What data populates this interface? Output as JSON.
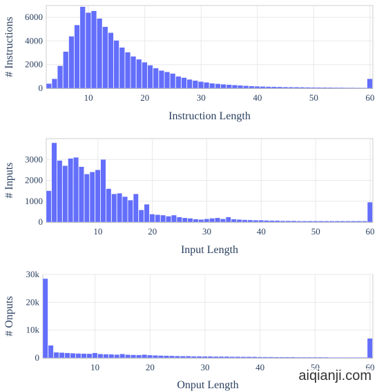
{
  "colors": {
    "bar": "#636efa",
    "grid": "#e8e8e8",
    "text": "#2a3f5f",
    "zero_line": "#444444"
  },
  "watermark": "aiqianji.com",
  "chart_data": [
    {
      "type": "bar",
      "xlabel": "Instruction Length",
      "ylabel": "# Instructions",
      "xlim": [
        3,
        60
      ],
      "ylim": [
        0,
        7000
      ],
      "x_ticks": [
        10,
        20,
        30,
        40,
        50,
        60
      ],
      "y_ticks": [
        0,
        2000,
        4000,
        6000
      ],
      "y_tick_labels": [
        "0",
        "2000",
        "4000",
        "6000"
      ],
      "x": [
        3,
        4,
        5,
        6,
        7,
        8,
        9,
        10,
        11,
        12,
        13,
        14,
        15,
        16,
        17,
        18,
        19,
        20,
        21,
        22,
        23,
        24,
        25,
        26,
        27,
        28,
        29,
        30,
        31,
        32,
        33,
        34,
        35,
        36,
        37,
        38,
        39,
        40,
        41,
        42,
        43,
        44,
        45,
        46,
        47,
        48,
        49,
        50,
        51,
        52,
        53,
        54,
        55,
        56,
        57,
        58,
        59,
        60
      ],
      "values": [
        400,
        800,
        1900,
        3100,
        4400,
        5350,
        6900,
        6400,
        6550,
        5900,
        5200,
        4700,
        4050,
        3450,
        3050,
        2700,
        2450,
        2200,
        1950,
        1700,
        1500,
        1380,
        1250,
        1000,
        900,
        750,
        650,
        560,
        500,
        420,
        380,
        340,
        300,
        270,
        240,
        210,
        190,
        170,
        150,
        140,
        130,
        120,
        110,
        100,
        95,
        90,
        85,
        80,
        75,
        70,
        65,
        60,
        60,
        55,
        55,
        50,
        50,
        800
      ]
    },
    {
      "type": "bar",
      "xlabel": "Input Length",
      "ylabel": "# Inputs",
      "xlim": [
        1,
        60
      ],
      "ylim": [
        0,
        4000
      ],
      "x_ticks": [
        10,
        20,
        30,
        40,
        50,
        60
      ],
      "y_ticks": [
        0,
        1000,
        2000,
        3000
      ],
      "y_tick_labels": [
        "0",
        "1000",
        "2000",
        "3000"
      ],
      "x": [
        1,
        2,
        3,
        4,
        5,
        6,
        7,
        8,
        9,
        10,
        11,
        12,
        13,
        14,
        15,
        16,
        17,
        18,
        19,
        20,
        21,
        22,
        23,
        24,
        25,
        26,
        27,
        28,
        29,
        30,
        31,
        32,
        33,
        34,
        35,
        36,
        37,
        38,
        39,
        40,
        41,
        42,
        43,
        44,
        45,
        46,
        47,
        48,
        49,
        50,
        51,
        52,
        53,
        54,
        55,
        56,
        57,
        58,
        59,
        60
      ],
      "values": [
        1500,
        3800,
        2950,
        2700,
        3050,
        3100,
        2650,
        2300,
        2400,
        2500,
        3000,
        1600,
        1350,
        1380,
        1220,
        1050,
        1350,
        580,
        850,
        380,
        350,
        330,
        280,
        330,
        240,
        200,
        180,
        140,
        120,
        150,
        180,
        200,
        150,
        240,
        140,
        120,
        110,
        100,
        90,
        90,
        80,
        70,
        70,
        60,
        60,
        60,
        50,
        50,
        50,
        50,
        50,
        50,
        50,
        50,
        50,
        50,
        50,
        50,
        50,
        950
      ]
    },
    {
      "type": "bar",
      "xlabel": "Onput Length",
      "ylabel": "# Onputs",
      "xlim": [
        1,
        60
      ],
      "ylim": [
        0,
        30000
      ],
      "x_ticks": [
        10,
        20,
        30,
        40,
        50,
        60
      ],
      "y_ticks": [
        0,
        10000,
        20000,
        30000
      ],
      "y_tick_labels": [
        "0",
        "10k",
        "20k",
        "30k"
      ],
      "x": [
        1,
        2,
        3,
        4,
        5,
        6,
        7,
        8,
        9,
        10,
        11,
        12,
        13,
        14,
        15,
        16,
        17,
        18,
        19,
        20,
        21,
        22,
        23,
        24,
        25,
        26,
        27,
        28,
        29,
        30,
        31,
        32,
        33,
        34,
        35,
        36,
        37,
        38,
        39,
        40,
        41,
        42,
        43,
        44,
        45,
        46,
        47,
        48,
        49,
        50,
        51,
        52,
        53,
        54,
        55,
        56,
        57,
        58,
        59,
        60
      ],
      "values": [
        28500,
        4500,
        2000,
        1900,
        1800,
        1700,
        1600,
        1550,
        1500,
        1800,
        1400,
        1350,
        1300,
        1200,
        1400,
        1150,
        1100,
        1050,
        1200,
        1000,
        900,
        850,
        800,
        750,
        700,
        650,
        650,
        600,
        600,
        550,
        550,
        500,
        500,
        500,
        450,
        450,
        400,
        400,
        400,
        350,
        350,
        350,
        300,
        300,
        300,
        300,
        250,
        250,
        250,
        250,
        250,
        250,
        200,
        200,
        200,
        200,
        200,
        200,
        200,
        7000
      ]
    }
  ]
}
